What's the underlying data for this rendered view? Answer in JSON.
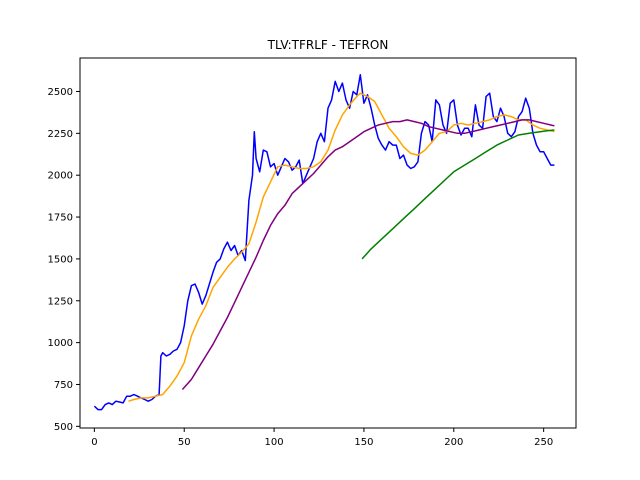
{
  "chart_data": {
    "type": "line",
    "title": "TLV:TFRLF - TEFRON",
    "xlabel": "",
    "ylabel": "",
    "xlim": [
      -8,
      268
    ],
    "ylim": [
      490,
      2700
    ],
    "xticks": [
      0,
      50,
      100,
      150,
      200,
      250
    ],
    "yticks": [
      500,
      750,
      1000,
      1250,
      1500,
      1750,
      2000,
      2250,
      2500
    ],
    "grid": false,
    "legend": "none",
    "series": [
      {
        "color": "#0000ff",
        "points": [
          [
            0,
            620
          ],
          [
            2,
            600
          ],
          [
            4,
            600
          ],
          [
            6,
            630
          ],
          [
            8,
            640
          ],
          [
            10,
            630
          ],
          [
            12,
            650
          ],
          [
            14,
            645
          ],
          [
            16,
            640
          ],
          [
            18,
            680
          ],
          [
            20,
            680
          ],
          [
            22,
            690
          ],
          [
            24,
            680
          ],
          [
            26,
            670
          ],
          [
            28,
            660
          ],
          [
            30,
            650
          ],
          [
            32,
            660
          ],
          [
            34,
            680
          ],
          [
            36,
            690
          ],
          [
            37,
            920
          ],
          [
            38,
            940
          ],
          [
            40,
            920
          ],
          [
            42,
            930
          ],
          [
            44,
            950
          ],
          [
            46,
            960
          ],
          [
            48,
            1000
          ],
          [
            50,
            1100
          ],
          [
            52,
            1250
          ],
          [
            54,
            1340
          ],
          [
            56,
            1350
          ],
          [
            58,
            1300
          ],
          [
            60,
            1230
          ],
          [
            62,
            1280
          ],
          [
            64,
            1350
          ],
          [
            66,
            1420
          ],
          [
            68,
            1480
          ],
          [
            70,
            1500
          ],
          [
            72,
            1560
          ],
          [
            74,
            1600
          ],
          [
            76,
            1550
          ],
          [
            78,
            1580
          ],
          [
            80,
            1520
          ],
          [
            82,
            1550
          ],
          [
            84,
            1490
          ],
          [
            86,
            1850
          ],
          [
            88,
            2000
          ],
          [
            89,
            2260
          ],
          [
            90,
            2100
          ],
          [
            92,
            2020
          ],
          [
            94,
            2150
          ],
          [
            96,
            2140
          ],
          [
            98,
            2050
          ],
          [
            100,
            2070
          ],
          [
            102,
            2000
          ],
          [
            104,
            2050
          ],
          [
            106,
            2100
          ],
          [
            108,
            2080
          ],
          [
            110,
            2030
          ],
          [
            112,
            2050
          ],
          [
            114,
            2090
          ],
          [
            116,
            1950
          ],
          [
            118,
            2000
          ],
          [
            120,
            2050
          ],
          [
            122,
            2100
          ],
          [
            124,
            2200
          ],
          [
            126,
            2250
          ],
          [
            128,
            2200
          ],
          [
            130,
            2400
          ],
          [
            132,
            2450
          ],
          [
            134,
            2560
          ],
          [
            136,
            2500
          ],
          [
            138,
            2550
          ],
          [
            140,
            2450
          ],
          [
            142,
            2400
          ],
          [
            144,
            2500
          ],
          [
            146,
            2480
          ],
          [
            148,
            2600
          ],
          [
            150,
            2430
          ],
          [
            152,
            2480
          ],
          [
            154,
            2400
          ],
          [
            156,
            2300
          ],
          [
            158,
            2220
          ],
          [
            160,
            2180
          ],
          [
            162,
            2150
          ],
          [
            164,
            2200
          ],
          [
            166,
            2180
          ],
          [
            168,
            2180
          ],
          [
            170,
            2100
          ],
          [
            172,
            2120
          ],
          [
            174,
            2060
          ],
          [
            176,
            2040
          ],
          [
            178,
            2050
          ],
          [
            180,
            2080
          ],
          [
            182,
            2250
          ],
          [
            184,
            2320
          ],
          [
            186,
            2300
          ],
          [
            188,
            2200
          ],
          [
            190,
            2450
          ],
          [
            192,
            2420
          ],
          [
            194,
            2300
          ],
          [
            196,
            2250
          ],
          [
            198,
            2430
          ],
          [
            200,
            2450
          ],
          [
            202,
            2300
          ],
          [
            204,
            2240
          ],
          [
            206,
            2280
          ],
          [
            208,
            2280
          ],
          [
            210,
            2230
          ],
          [
            212,
            2420
          ],
          [
            214,
            2300
          ],
          [
            216,
            2280
          ],
          [
            218,
            2470
          ],
          [
            220,
            2490
          ],
          [
            222,
            2350
          ],
          [
            224,
            2320
          ],
          [
            226,
            2400
          ],
          [
            228,
            2350
          ],
          [
            230,
            2250
          ],
          [
            232,
            2230
          ],
          [
            234,
            2260
          ],
          [
            236,
            2350
          ],
          [
            238,
            2380
          ],
          [
            240,
            2460
          ],
          [
            242,
            2400
          ],
          [
            244,
            2250
          ],
          [
            246,
            2180
          ],
          [
            248,
            2140
          ],
          [
            250,
            2140
          ],
          [
            252,
            2100
          ],
          [
            254,
            2060
          ],
          [
            256,
            2060
          ]
        ]
      },
      {
        "color": "#ffa500",
        "points": [
          [
            19,
            650
          ],
          [
            22,
            660
          ],
          [
            26,
            670
          ],
          [
            30,
            670
          ],
          [
            34,
            680
          ],
          [
            38,
            690
          ],
          [
            42,
            740
          ],
          [
            46,
            800
          ],
          [
            50,
            880
          ],
          [
            54,
            1040
          ],
          [
            58,
            1140
          ],
          [
            62,
            1220
          ],
          [
            66,
            1330
          ],
          [
            70,
            1390
          ],
          [
            74,
            1450
          ],
          [
            78,
            1500
          ],
          [
            82,
            1540
          ],
          [
            86,
            1590
          ],
          [
            90,
            1720
          ],
          [
            94,
            1870
          ],
          [
            98,
            1960
          ],
          [
            102,
            2050
          ],
          [
            106,
            2060
          ],
          [
            110,
            2050
          ],
          [
            114,
            2040
          ],
          [
            118,
            2040
          ],
          [
            122,
            2050
          ],
          [
            126,
            2080
          ],
          [
            130,
            2150
          ],
          [
            134,
            2270
          ],
          [
            138,
            2360
          ],
          [
            142,
            2420
          ],
          [
            146,
            2470
          ],
          [
            148,
            2490
          ],
          [
            152,
            2470
          ],
          [
            156,
            2440
          ],
          [
            160,
            2360
          ],
          [
            164,
            2280
          ],
          [
            168,
            2230
          ],
          [
            172,
            2170
          ],
          [
            176,
            2130
          ],
          [
            180,
            2120
          ],
          [
            184,
            2150
          ],
          [
            188,
            2200
          ],
          [
            192,
            2250
          ],
          [
            196,
            2260
          ],
          [
            200,
            2300
          ],
          [
            204,
            2310
          ],
          [
            208,
            2300
          ],
          [
            212,
            2310
          ],
          [
            216,
            2320
          ],
          [
            220,
            2330
          ],
          [
            224,
            2350
          ],
          [
            228,
            2360
          ],
          [
            232,
            2350
          ],
          [
            236,
            2330
          ],
          [
            240,
            2330
          ],
          [
            244,
            2300
          ],
          [
            248,
            2280
          ],
          [
            252,
            2270
          ],
          [
            256,
            2260
          ]
        ]
      },
      {
        "color": "#800080",
        "points": [
          [
            49,
            720
          ],
          [
            54,
            780
          ],
          [
            58,
            850
          ],
          [
            62,
            920
          ],
          [
            66,
            990
          ],
          [
            70,
            1070
          ],
          [
            74,
            1150
          ],
          [
            78,
            1240
          ],
          [
            82,
            1330
          ],
          [
            86,
            1420
          ],
          [
            90,
            1510
          ],
          [
            94,
            1610
          ],
          [
            98,
            1700
          ],
          [
            102,
            1770
          ],
          [
            106,
            1820
          ],
          [
            110,
            1890
          ],
          [
            114,
            1930
          ],
          [
            118,
            1970
          ],
          [
            122,
            2010
          ],
          [
            126,
            2060
          ],
          [
            130,
            2110
          ],
          [
            134,
            2150
          ],
          [
            138,
            2170
          ],
          [
            142,
            2200
          ],
          [
            146,
            2230
          ],
          [
            150,
            2260
          ],
          [
            154,
            2280
          ],
          [
            158,
            2300
          ],
          [
            162,
            2310
          ],
          [
            166,
            2320
          ],
          [
            170,
            2320
          ],
          [
            174,
            2330
          ],
          [
            178,
            2320
          ],
          [
            182,
            2310
          ],
          [
            186,
            2290
          ],
          [
            190,
            2280
          ],
          [
            194,
            2270
          ],
          [
            198,
            2260
          ],
          [
            202,
            2250
          ],
          [
            206,
            2250
          ],
          [
            210,
            2260
          ],
          [
            214,
            2270
          ],
          [
            218,
            2280
          ],
          [
            222,
            2290
          ],
          [
            226,
            2300
          ],
          [
            230,
            2310
          ],
          [
            234,
            2320
          ],
          [
            238,
            2330
          ],
          [
            242,
            2330
          ],
          [
            246,
            2320
          ],
          [
            250,
            2310
          ],
          [
            254,
            2300
          ],
          [
            256,
            2295
          ]
        ]
      },
      {
        "color": "#008000",
        "points": [
          [
            149,
            1500
          ],
          [
            154,
            1560
          ],
          [
            160,
            1620
          ],
          [
            166,
            1680
          ],
          [
            172,
            1740
          ],
          [
            178,
            1800
          ],
          [
            184,
            1860
          ],
          [
            190,
            1920
          ],
          [
            196,
            1980
          ],
          [
            200,
            2020
          ],
          [
            206,
            2060
          ],
          [
            212,
            2100
          ],
          [
            218,
            2140
          ],
          [
            224,
            2180
          ],
          [
            230,
            2210
          ],
          [
            236,
            2240
          ],
          [
            242,
            2250
          ],
          [
            248,
            2260
          ],
          [
            252,
            2265
          ],
          [
            256,
            2270
          ]
        ]
      }
    ]
  }
}
